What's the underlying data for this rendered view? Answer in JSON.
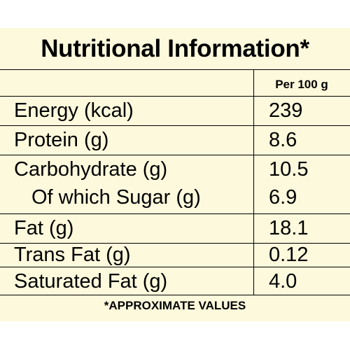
{
  "title": "Nutritional Information*",
  "column_header": "Per 100 g",
  "rows": [
    {
      "label": "Energy (kcal)",
      "value": "239"
    },
    {
      "label": "Protein (g)",
      "value": "8.6"
    },
    {
      "label": "Carbohydrate (g)",
      "value": "10.5"
    },
    {
      "label": "Of which Sugar (g)",
      "value": "6.9"
    },
    {
      "label": "Fat (g)",
      "value": "18.1"
    },
    {
      "label": "Trans Fat (g)",
      "value": "0.12"
    },
    {
      "label": "Saturated Fat (g)",
      "value": "4.0"
    }
  ],
  "footnote": "*APPROXIMATE VALUES",
  "colors": {
    "background": "#fdf9dc",
    "text": "#000000",
    "rules": "#000000"
  }
}
